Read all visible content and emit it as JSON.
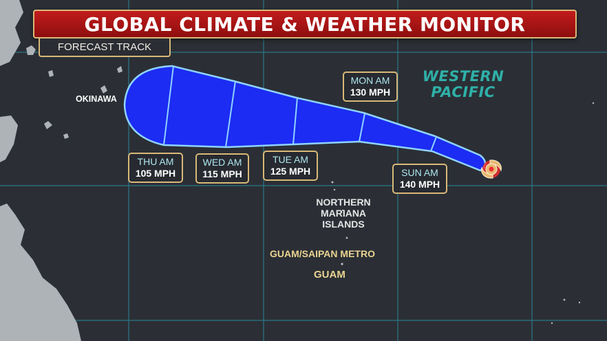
{
  "header": {
    "title": "GLOBAL CLIMATE & WEATHER MONITOR",
    "subtitle": "FORECAST TRACK"
  },
  "map": {
    "places": {
      "okinawa": "OKINAWA",
      "northern_mariana": "NORTHERN MARIANA ISLANDS",
      "guam_saipan_metro": "GUAM/SAIPAN METRO",
      "guam": "GUAM",
      "ocean": "WESTERN PACIFIC"
    },
    "forecast_points": [
      {
        "day": "SUN AM",
        "wind": "140 MPH"
      },
      {
        "day": "MON AM",
        "wind": "130 MPH"
      },
      {
        "day": "TUE AM",
        "wind": "125 MPH"
      },
      {
        "day": "WED AM",
        "wind": "115 MPH"
      },
      {
        "day": "THU AM",
        "wind": "105 MPH"
      }
    ]
  },
  "colors": {
    "banner": "#b01616",
    "banner_border": "#d9b978",
    "cone_fill": "#1c2cf2",
    "cone_outline": "#8fd3ff",
    "label_border": "#d9b978",
    "label_day": "#aee6ef",
    "ocean_label": "#2fb0a8",
    "guam_label": "#ead392",
    "storm_symbol": "#e9b872"
  },
  "icons": {
    "storm": "hurricane-icon"
  }
}
